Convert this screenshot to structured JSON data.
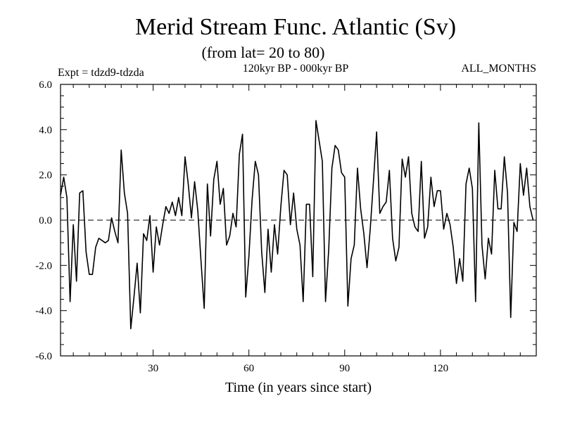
{
  "chart_data": {
    "type": "line",
    "title": "Merid Stream Func. Atlantic (Sv)",
    "subtitle": "(from lat= 20 to 80)",
    "header_left": "Expt = tdzd9-tdzda",
    "header_center": "120kyr BP - 000kyr BP",
    "header_right": "ALL_MONTHS",
    "xlabel": "Time (in years since start)",
    "ylabel": "",
    "xlim": [
      1,
      150
    ],
    "ylim": [
      -6,
      6
    ],
    "x_ticks": [
      30,
      60,
      90,
      120
    ],
    "y_ticks": [
      -6,
      -4,
      -2,
      0,
      2,
      4,
      6
    ],
    "y_tick_labels": [
      "-6.0",
      "-4.0",
      "-2.0",
      "0.0",
      "2.0",
      "4.0",
      "6.0"
    ],
    "x_minor_step": 5,
    "y_minor_step": 0.5,
    "zero_line": true,
    "series": [
      {
        "values": [
          1.1,
          1.9,
          1.0,
          -3.6,
          -0.2,
          -2.7,
          1.2,
          1.3,
          -1.4,
          -2.4,
          -2.4,
          -1.2,
          -0.8,
          -0.9,
          -1.0,
          -0.9,
          0.1,
          -0.5,
          -1.0,
          3.1,
          1.2,
          0.3,
          -4.8,
          -3.4,
          -1.9,
          -4.1,
          -0.6,
          -0.9,
          0.2,
          -2.3,
          -0.3,
          -1.1,
          -0.2,
          0.6,
          0.3,
          0.8,
          0.2,
          1.0,
          0.2,
          2.8,
          1.6,
          0.1,
          1.7,
          0.4,
          -1.8,
          -3.9,
          1.6,
          -0.7,
          1.8,
          2.6,
          0.7,
          1.4,
          -1.1,
          -0.7,
          0.3,
          -0.3,
          2.9,
          3.8,
          -3.4,
          -1.6,
          0.9,
          2.6,
          2.0,
          -1.4,
          -3.2,
          -0.4,
          -2.3,
          -0.2,
          -1.5,
          0.6,
          2.2,
          2.0,
          -0.2,
          1.2,
          -0.4,
          -1.1,
          -3.6,
          0.7,
          0.7,
          -2.5,
          4.4,
          3.5,
          2.6,
          -3.6,
          -1.3,
          2.3,
          3.3,
          3.1,
          2.1,
          1.9,
          -3.8,
          -1.7,
          -1.1,
          2.3,
          0.5,
          -0.6,
          -2.1,
          -0.4,
          1.7,
          3.9,
          0.3,
          0.6,
          0.8,
          2.2,
          -0.8,
          -1.8,
          -1.2,
          2.7,
          1.9,
          2.8,
          0.3,
          -0.3,
          -0.5,
          2.6,
          -0.8,
          -0.3,
          1.9,
          0.6,
          1.3,
          1.3,
          -0.4,
          0.3,
          -0.2,
          -1.2,
          -2.8,
          -1.7,
          -2.7,
          1.6,
          2.3,
          1.4,
          -3.6,
          4.3,
          -1.1,
          -2.6,
          -0.8,
          -1.5,
          2.2,
          0.5,
          0.5,
          2.8,
          1.2,
          -4.3,
          -0.1,
          -0.5,
          2.5,
          1.1,
          2.3,
          0.6,
          0.0
        ]
      }
    ]
  }
}
